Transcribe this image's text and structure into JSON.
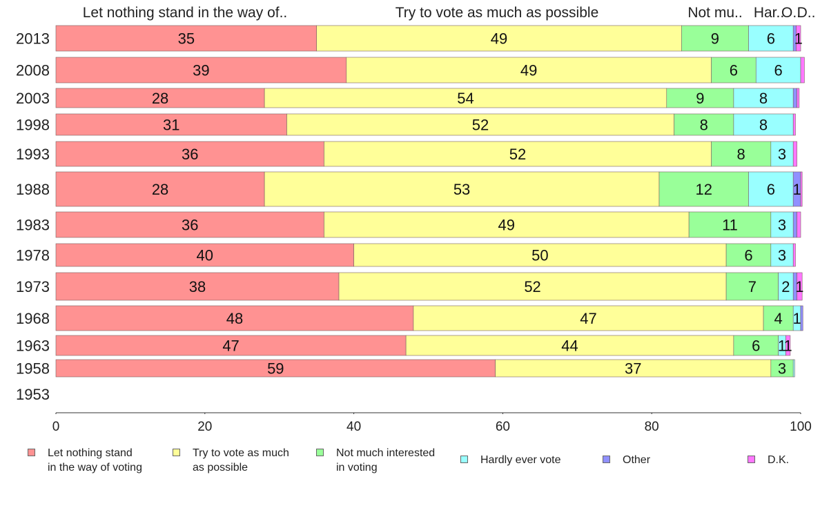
{
  "chart_data": {
    "type": "bar",
    "orientation": "horizontal",
    "stacked": true,
    "categories": [
      "2013",
      "2008",
      "2003",
      "1998",
      "1993",
      "1988",
      "1983",
      "1978",
      "1973",
      "1968",
      "1963",
      "1958",
      "1953"
    ],
    "series": [
      {
        "name": "Let nothing stand\nin the way of voting",
        "top_label": "Let nothing stand in the way of..",
        "color": "#ff9292",
        "values": [
          35,
          39,
          28,
          31,
          36,
          28,
          36,
          40,
          38,
          48,
          47,
          59,
          null
        ]
      },
      {
        "name": "Try to vote as much\nas possible",
        "top_label": "Try to vote as much as possible",
        "color": "#ffff99",
        "values": [
          49,
          49,
          54,
          52,
          52,
          53,
          49,
          50,
          52,
          47,
          44,
          37,
          null
        ]
      },
      {
        "name": "Not much interested\nin voting",
        "top_label": "Not mu..",
        "color": "#99ff99",
        "values": [
          9,
          6,
          9,
          8,
          8,
          12,
          11,
          6,
          7,
          4,
          6,
          3,
          null
        ]
      },
      {
        "name": "Hardly ever vote",
        "top_label": "Har..",
        "color": "#99ffff",
        "values": [
          6,
          6,
          8,
          8,
          3,
          6,
          3,
          3,
          2,
          1,
          1,
          0.2,
          null
        ]
      },
      {
        "name": "Other",
        "top_label": "O..",
        "color": "#9090ff",
        "values": [
          0.4,
          0,
          0.5,
          0,
          0,
          1,
          0.5,
          0,
          0.5,
          0.3,
          0,
          0,
          null
        ]
      },
      {
        "name": "D.K.",
        "top_label": "D..",
        "color": "#ff77ff",
        "values": [
          0.6,
          0.5,
          0.3,
          0.3,
          0.5,
          0.2,
          0.5,
          0.3,
          0.7,
          0,
          0.6,
          0,
          null
        ]
      }
    ],
    "data_labels": [
      [
        "35",
        "49",
        "9",
        "6",
        "",
        "1"
      ],
      [
        "39",
        "49",
        "6",
        "6",
        "",
        ""
      ],
      [
        "28",
        "54",
        "9",
        "8",
        "",
        ""
      ],
      [
        "31",
        "52",
        "8",
        "8",
        "",
        ""
      ],
      [
        "36",
        "52",
        "8",
        "3",
        "",
        ""
      ],
      [
        "28",
        "53",
        "12",
        "6",
        "1",
        ""
      ],
      [
        "36",
        "49",
        "11",
        "3",
        "",
        ""
      ],
      [
        "40",
        "50",
        "6",
        "3",
        "",
        ""
      ],
      [
        "38",
        "52",
        "7",
        "2",
        "",
        "1"
      ],
      [
        "48",
        "47",
        "4",
        "1",
        "",
        ""
      ],
      [
        "47",
        "44",
        "6",
        "1",
        "",
        "1"
      ],
      [
        "59",
        "37",
        "3",
        "",
        "",
        ""
      ],
      [
        "",
        "",
        "",
        "",
        "",
        ""
      ]
    ],
    "xlim": [
      0,
      100
    ],
    "xticks": [
      "0",
      "20",
      "40",
      "60",
      "80",
      "100"
    ],
    "xlabel": "",
    "ylabel": "",
    "grid": false,
    "legend_position": "bottom"
  }
}
